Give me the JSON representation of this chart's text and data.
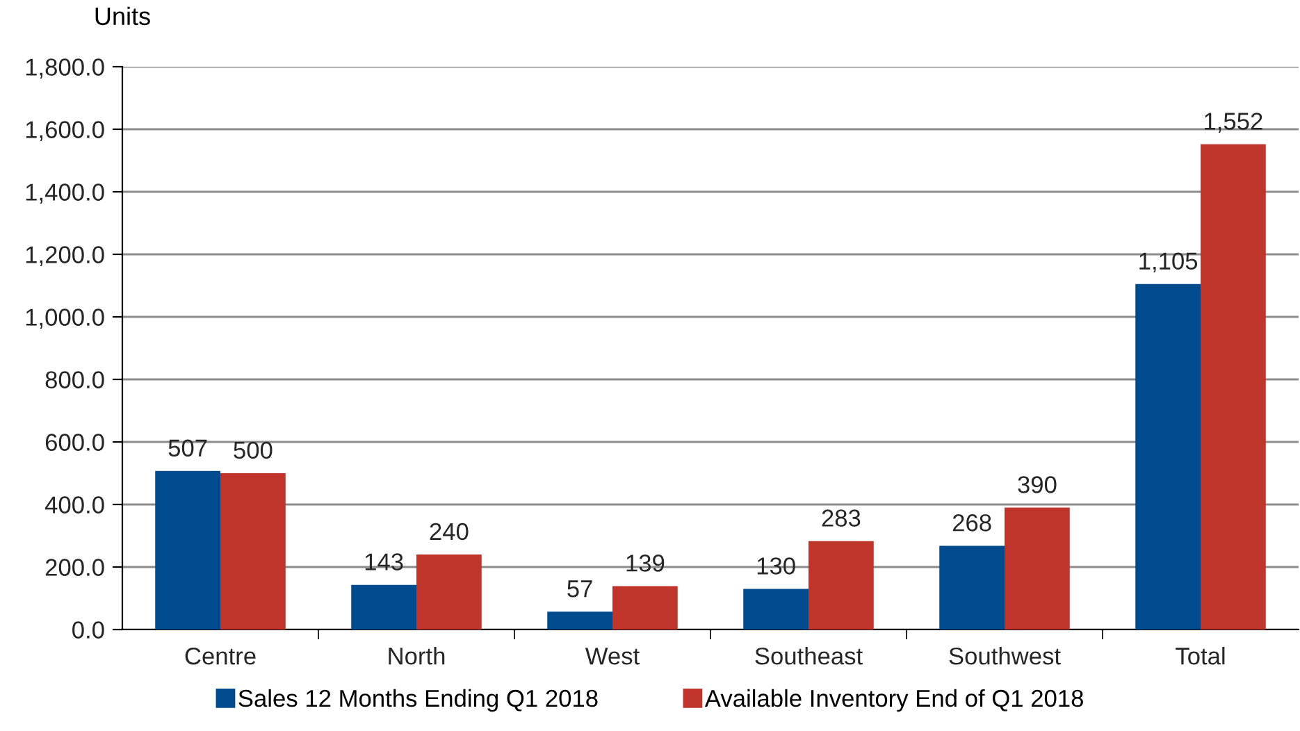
{
  "chart_data": {
    "type": "bar",
    "ylabel": "Units",
    "categories": [
      "Centre",
      "North",
      "West",
      "Southeast",
      "Southwest",
      "Total"
    ],
    "series": [
      {
        "name": "Sales 12 Months Ending Q1 2018",
        "color": "#004b8d",
        "values": [
          507,
          143,
          57,
          130,
          268,
          1105
        ],
        "value_labels": [
          "507",
          "143",
          "57",
          "130",
          "268",
          "1,105"
        ]
      },
      {
        "name": "Available Inventory End of Q1 2018",
        "color": "#c0352b",
        "values": [
          500,
          240,
          139,
          283,
          390,
          1552
        ],
        "value_labels": [
          "500",
          "240",
          "139",
          "283",
          "390",
          "1,552"
        ]
      }
    ],
    "ylim": [
      0,
      1800
    ],
    "yticks": [
      {
        "value": 0,
        "label": "0.0"
      },
      {
        "value": 200,
        "label": "200.0"
      },
      {
        "value": 400,
        "label": "400.0"
      },
      {
        "value": 600,
        "label": "600.0"
      },
      {
        "value": 800,
        "label": "800.0"
      },
      {
        "value": 1000,
        "label": "1,000.0"
      },
      {
        "value": 1200,
        "label": "1,200.0"
      },
      {
        "value": 1400,
        "label": "1,400.0"
      },
      {
        "value": 1600,
        "label": "1,600.0"
      },
      {
        "value": 1800,
        "label": "1,800.0"
      }
    ],
    "grid": "y",
    "legend": "bottom"
  }
}
